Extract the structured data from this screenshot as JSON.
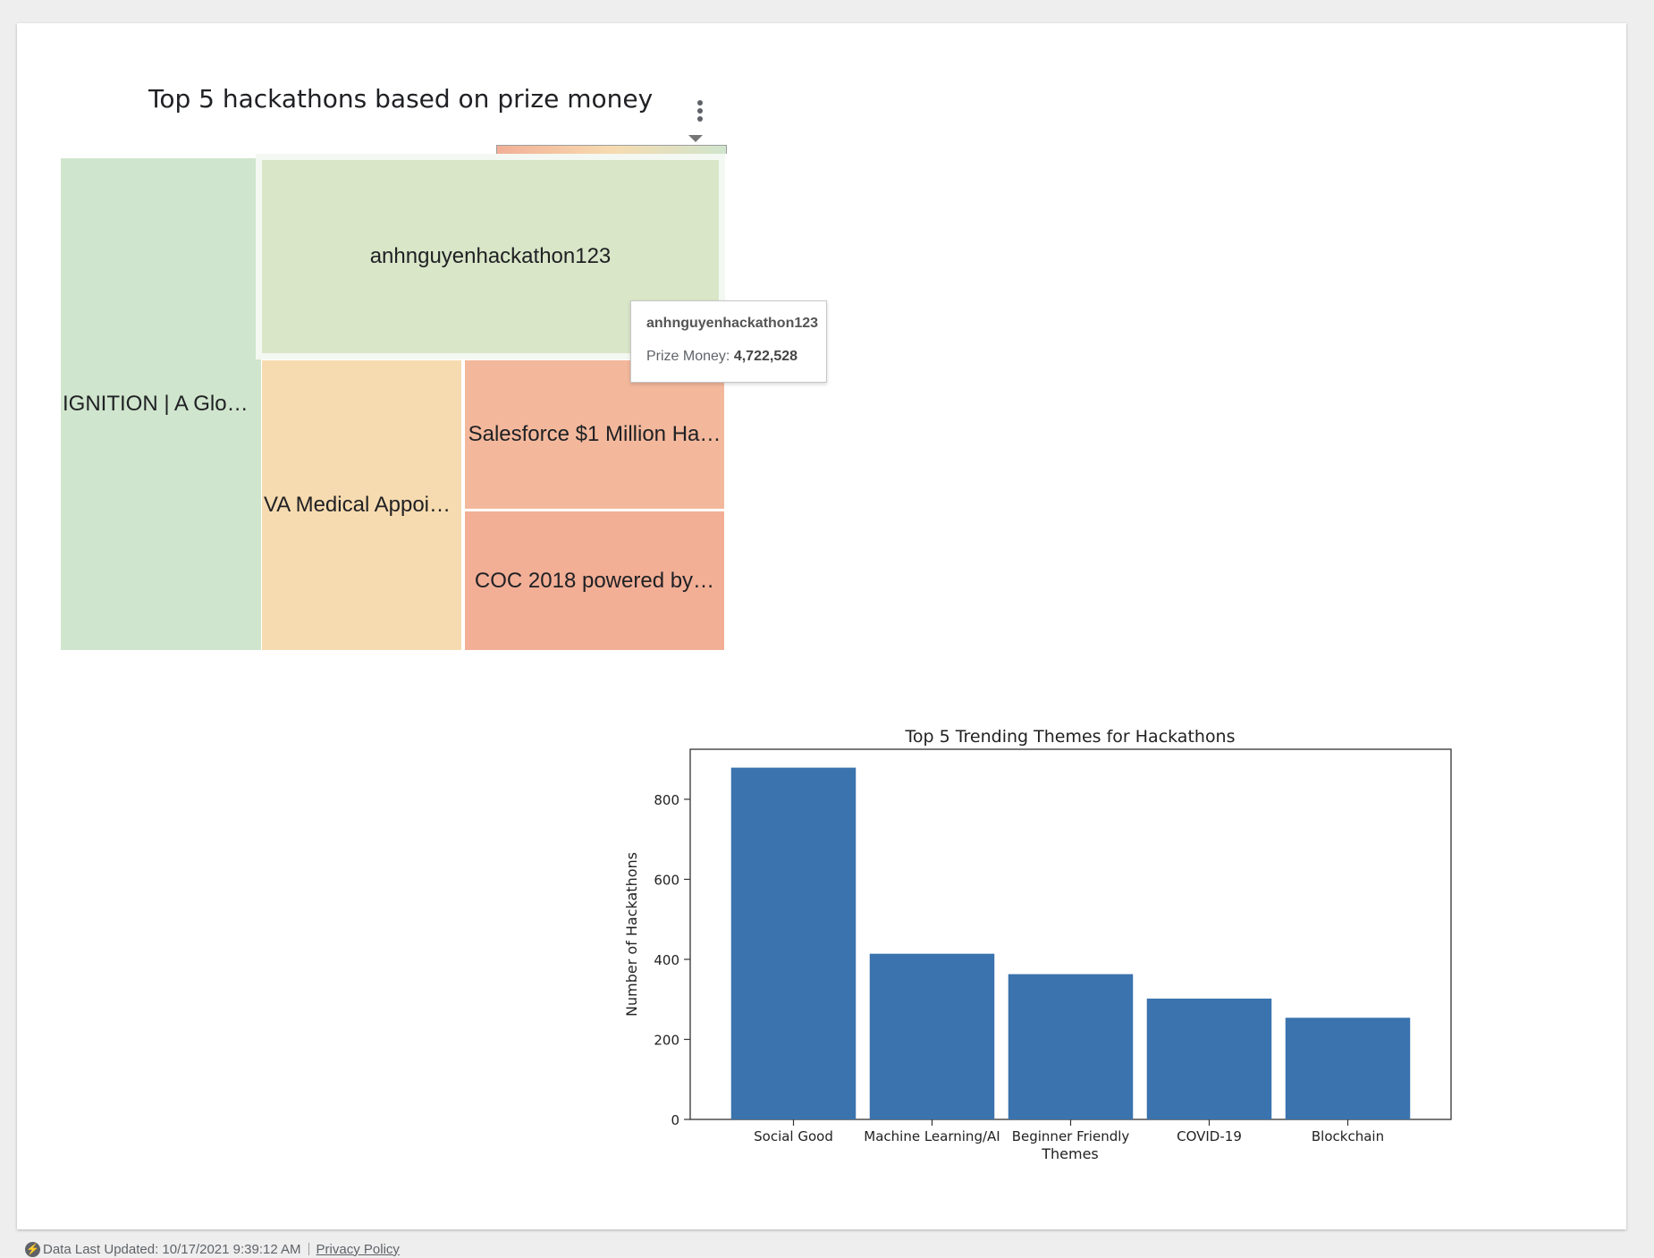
{
  "treemap": {
    "title": "Top 5 hackathons based on prize money",
    "menu_icon": "more-vert-icon",
    "dropdown_icon": "caret-down-icon",
    "tiles": [
      {
        "label": "IGNITION | A Glob…",
        "color": "#cfe5cd"
      },
      {
        "label": "anhnguyenhackathon123",
        "color": "#d9e6c8"
      },
      {
        "label": "VA Medical Appoin…",
        "color": "#f7dbb0"
      },
      {
        "label": "Salesforce $1 Million Ha…",
        "color": "#f3b89c"
      },
      {
        "label": "COC 2018 powered by…",
        "color": "#f2af96"
      }
    ],
    "legend_colors": [
      "#f2af96",
      "#f7dbb0",
      "#cfe5cd"
    ],
    "tooltip": {
      "name": "anhnguyenhackathon123",
      "metric_label": "Prize Money:",
      "metric_value": "4,722,528"
    }
  },
  "chart_data": {
    "type": "bar",
    "title": "Top 5 Trending Themes for Hackathons",
    "xlabel": "Themes",
    "ylabel": "Number of Hackathons",
    "categories": [
      "Social Good",
      "Machine Learning/AI",
      "Beginner Friendly",
      "COVID-19",
      "Blockchain"
    ],
    "values": [
      879,
      414,
      363,
      302,
      254
    ],
    "ylim": [
      0,
      925
    ],
    "yticks": [
      0,
      200,
      400,
      600,
      800
    ],
    "bar_color": "#3a73ae",
    "grid": false
  },
  "footer": {
    "icon": "bolt-icon",
    "updated_text": "Data Last Updated: 10/17/2021 9:39:12 AM",
    "privacy_label": "Privacy Policy"
  }
}
